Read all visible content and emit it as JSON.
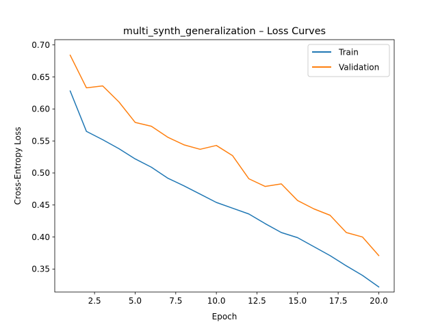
{
  "chart_data": {
    "type": "line",
    "title": "multi_synth_generalization – Loss Curves",
    "xlabel": "Epoch",
    "ylabel": "Cross-Entropy Loss",
    "xlim": [
      0.05,
      20.95
    ],
    "ylim": [
      0.3141,
      0.7082
    ],
    "xticks": [
      "2.5",
      "5.0",
      "7.5",
      "10.0",
      "12.5",
      "15.0",
      "17.5",
      "20.0"
    ],
    "yticks": [
      "0.35",
      "0.40",
      "0.45",
      "0.50",
      "0.55",
      "0.60",
      "0.65",
      "0.70"
    ],
    "grid": false,
    "legend_position": "top-right",
    "x": [
      1,
      2,
      3,
      4,
      5,
      6,
      7,
      8,
      9,
      10,
      11,
      12,
      13,
      14,
      15,
      16,
      17,
      18,
      19,
      20
    ],
    "series": [
      {
        "name": "Train",
        "color": "#1f77b4",
        "values": [
          0.628,
          0.565,
          0.552,
          0.538,
          0.522,
          0.509,
          0.492,
          0.48,
          0.467,
          0.454,
          0.445,
          0.436,
          0.421,
          0.407,
          0.399,
          0.385,
          0.371,
          0.355,
          0.34,
          0.322
        ]
      },
      {
        "name": "Validation",
        "color": "#ff7f0e",
        "values": [
          0.684,
          0.633,
          0.636,
          0.611,
          0.579,
          0.573,
          0.556,
          0.544,
          0.537,
          0.543,
          0.527,
          0.491,
          0.479,
          0.483,
          0.457,
          0.444,
          0.434,
          0.407,
          0.4,
          0.371
        ]
      }
    ]
  }
}
